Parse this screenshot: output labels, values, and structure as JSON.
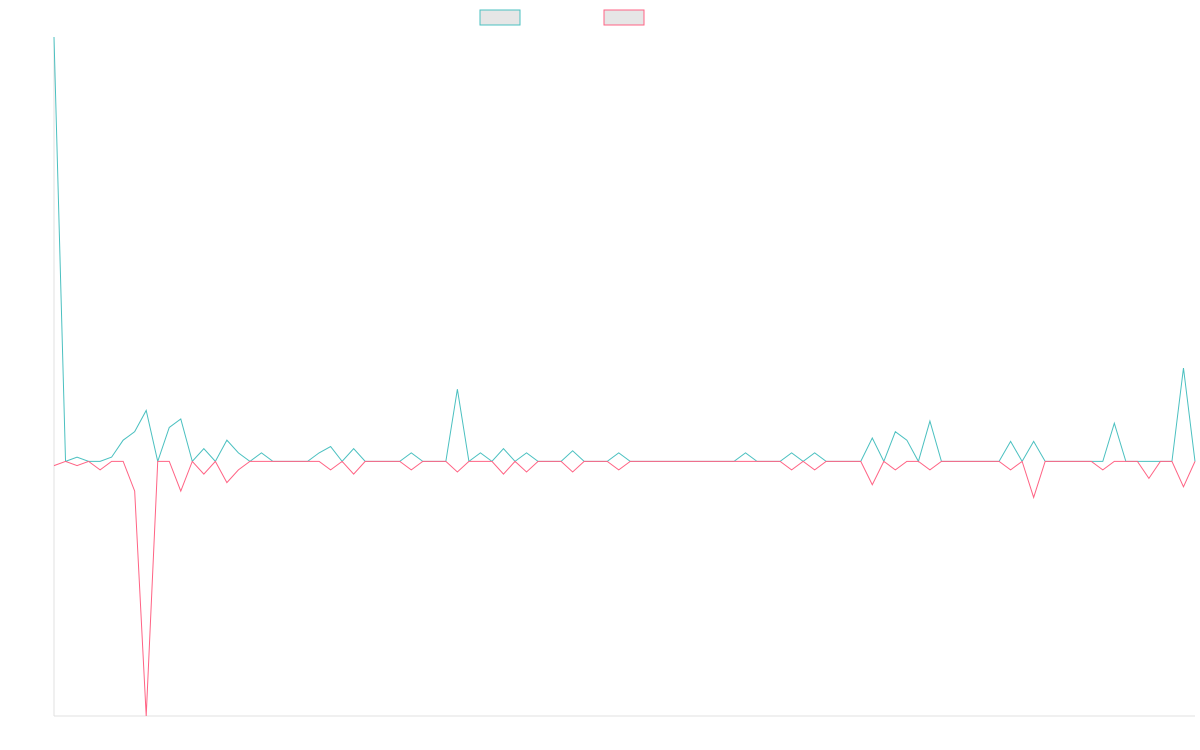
{
  "chart_data": {
    "type": "line",
    "x": [
      0,
      1,
      2,
      3,
      4,
      5,
      6,
      7,
      8,
      9,
      10,
      11,
      12,
      13,
      14,
      15,
      16,
      17,
      18,
      19,
      20,
      21,
      22,
      23,
      24,
      25,
      26,
      27,
      28,
      29,
      30,
      31,
      32,
      33,
      34,
      35,
      36,
      37,
      38,
      39,
      40,
      41,
      42,
      43,
      44,
      45,
      46,
      47,
      48,
      49,
      50,
      51,
      52,
      53,
      54,
      55,
      56,
      57,
      58,
      59,
      60,
      61,
      62,
      63,
      64,
      65,
      66,
      67,
      68,
      69,
      70,
      71,
      72,
      73,
      74,
      75,
      76,
      77,
      78,
      79,
      80,
      81,
      82,
      83,
      84,
      85,
      86,
      87,
      88,
      89,
      90,
      91,
      92,
      93,
      94,
      95,
      96,
      97,
      98,
      99
    ],
    "series": [
      {
        "color": "#4bc0c0",
        "values": [
          1,
          0,
          0.01,
          0,
          0,
          0.01,
          0.05,
          0.07,
          0.12,
          0,
          0.08,
          0.1,
          0,
          0.03,
          0,
          0.05,
          0.02,
          0,
          0.02,
          0,
          0,
          0,
          0,
          0.02,
          0.035,
          0,
          0.03,
          0,
          0,
          0,
          0,
          0.02,
          0,
          0,
          0,
          0.17,
          0,
          0.02,
          0,
          0.03,
          0,
          0.02,
          0,
          0,
          0,
          0.025,
          0,
          0,
          0,
          0.02,
          0,
          0,
          0,
          0,
          0,
          0,
          0,
          0,
          0,
          0,
          0.02,
          0,
          0,
          0,
          0.02,
          0,
          0.02,
          0,
          0,
          0,
          0,
          0.055,
          0,
          0.07,
          0.05,
          0,
          0.095,
          0,
          0,
          0,
          0,
          0,
          0,
          0.047,
          0,
          0.047,
          0,
          0,
          0,
          0,
          0,
          0,
          0.09,
          0,
          0,
          0,
          0,
          0,
          0.22,
          0
        ]
      },
      {
        "color": "#ff6384",
        "values": [
          -0.01,
          0,
          -0.01,
          0,
          -0.02,
          0,
          0,
          -0.07,
          -0.6,
          0,
          0,
          -0.07,
          0,
          -0.03,
          0,
          -0.05,
          -0.02,
          0,
          0,
          0,
          0,
          0,
          0,
          0,
          -0.02,
          0,
          -0.03,
          0,
          0,
          0,
          0,
          -0.02,
          0,
          0,
          0,
          -0.025,
          0,
          0,
          0,
          -0.03,
          0,
          -0.025,
          0,
          0,
          0,
          -0.025,
          0,
          0,
          0,
          -0.02,
          0,
          0,
          0,
          0,
          0,
          0,
          0,
          0,
          0,
          0,
          0,
          0,
          0,
          0,
          -0.02,
          0,
          -0.02,
          0,
          0,
          0,
          0,
          -0.055,
          0,
          -0.02,
          0,
          0,
          -0.02,
          0,
          0,
          0,
          0,
          0,
          0,
          -0.02,
          0,
          -0.085,
          0,
          0,
          0,
          0,
          0,
          -0.02,
          0,
          0,
          0,
          -0.04,
          0,
          0,
          -0.06,
          0
        ]
      }
    ],
    "xlim": [
      0,
      99
    ],
    "ylim": [
      -0.6,
      1
    ]
  }
}
